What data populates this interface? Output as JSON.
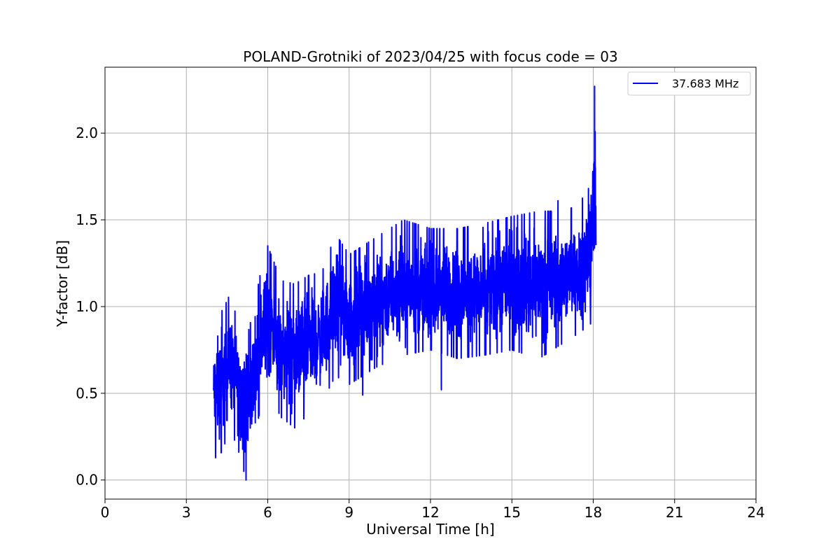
{
  "chart_data": {
    "type": "line",
    "title": "POLAND-Grotniki of 2023/04/25 with focus code = 03",
    "xlabel": "Universal Time [h]",
    "ylabel": "Y-factor [dB]",
    "xlim": [
      0,
      24
    ],
    "ylim": [
      -0.11,
      2.38
    ],
    "xticks": [
      0,
      3,
      6,
      9,
      12,
      15,
      18,
      21,
      24
    ],
    "xtick_labels": [
      "0",
      "3",
      "6",
      "9",
      "12",
      "15",
      "18",
      "21",
      "24"
    ],
    "yticks": [
      0.0,
      0.5,
      1.0,
      1.5,
      2.0
    ],
    "ytick_labels": [
      "0.0",
      "0.5",
      "1.0",
      "1.5",
      "2.0"
    ],
    "grid": true,
    "legend_position": "top-right",
    "series": [
      {
        "name": "37.683 MHz",
        "color": "#0000ff",
        "x_start": 4.0,
        "x_end": 18.1,
        "envelope": [
          {
            "x": 4.0,
            "min": 0.25,
            "max": 0.78
          },
          {
            "x": 4.1,
            "min": 0.09,
            "max": 0.92
          },
          {
            "x": 4.4,
            "min": 0.2,
            "max": 1.0
          },
          {
            "x": 4.6,
            "min": 0.3,
            "max": 1.07
          },
          {
            "x": 4.9,
            "min": 0.18,
            "max": 0.92
          },
          {
            "x": 5.2,
            "min": 0.0,
            "max": 0.8
          },
          {
            "x": 5.5,
            "min": 0.25,
            "max": 1.0
          },
          {
            "x": 5.8,
            "min": 0.45,
            "max": 1.25
          },
          {
            "x": 6.0,
            "min": 0.5,
            "max": 1.35
          },
          {
            "x": 6.5,
            "min": 0.36,
            "max": 1.15
          },
          {
            "x": 7.0,
            "min": 0.3,
            "max": 1.13
          },
          {
            "x": 7.5,
            "min": 0.38,
            "max": 1.18
          },
          {
            "x": 8.0,
            "min": 0.45,
            "max": 1.2
          },
          {
            "x": 8.5,
            "min": 0.6,
            "max": 1.42
          },
          {
            "x": 9.0,
            "min": 0.55,
            "max": 1.3
          },
          {
            "x": 10.0,
            "min": 0.65,
            "max": 1.4
          },
          {
            "x": 11.0,
            "min": 0.72,
            "max": 1.5
          },
          {
            "x": 12.0,
            "min": 0.75,
            "max": 1.45
          },
          {
            "x": 13.0,
            "min": 0.7,
            "max": 1.45
          },
          {
            "x": 14.0,
            "min": 0.72,
            "max": 1.48
          },
          {
            "x": 15.0,
            "min": 0.75,
            "max": 1.52
          },
          {
            "x": 16.0,
            "min": 0.7,
            "max": 1.55
          },
          {
            "x": 17.0,
            "min": 0.8,
            "max": 1.55
          },
          {
            "x": 17.5,
            "min": 0.85,
            "max": 1.6
          },
          {
            "x": 17.9,
            "min": 0.9,
            "max": 1.7
          },
          {
            "x": 18.05,
            "min": 1.0,
            "max": 2.27
          },
          {
            "x": 18.1,
            "min": 1.1,
            "max": 1.9
          }
        ],
        "noted_dips": [
          {
            "x": 5.2,
            "y": 0.0
          },
          {
            "x": 12.4,
            "y": 0.52
          },
          {
            "x": 9.5,
            "y": 0.49
          }
        ],
        "noted_peaks": [
          {
            "x": 18.05,
            "y": 2.27
          },
          {
            "x": 6.0,
            "y": 1.35
          },
          {
            "x": 16.7,
            "y": 1.61
          }
        ]
      }
    ]
  }
}
